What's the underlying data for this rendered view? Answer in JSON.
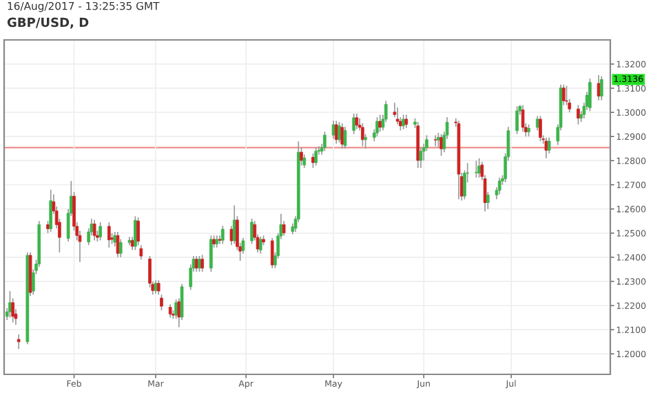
{
  "chart_data": {
    "type": "candlestick",
    "title": "GBP/USD, D",
    "annotations": [
      "16/Aug/2017 - 13:25:35 GMT",
      {
        "text": "1.3136",
        "x": "2017-08-01",
        "y": 1.3136
      }
    ],
    "x": [
      "2017-01-09",
      "2017-01-10",
      "2017-01-11",
      "2017-01-12",
      "2017-01-13",
      "2017-01-16",
      "2017-01-17",
      "2017-01-18",
      "2017-01-19",
      "2017-01-20",
      "2017-01-23",
      "2017-01-24",
      "2017-01-25",
      "2017-01-26",
      "2017-01-27",
      "2017-01-30",
      "2017-01-31",
      "2017-02-01",
      "2017-02-02",
      "2017-02-03",
      "2017-02-06",
      "2017-02-07",
      "2017-02-08",
      "2017-02-09",
      "2017-02-10",
      "2017-02-13",
      "2017-02-14",
      "2017-02-15",
      "2017-02-16",
      "2017-02-17",
      "2017-02-20",
      "2017-02-21",
      "2017-02-22",
      "2017-02-23",
      "2017-02-24",
      "2017-02-27",
      "2017-02-28",
      "2017-03-01",
      "2017-03-02",
      "2017-03-03",
      "2017-03-06",
      "2017-03-07",
      "2017-03-08",
      "2017-03-09",
      "2017-03-10",
      "2017-03-13",
      "2017-03-14",
      "2017-03-15",
      "2017-03-16",
      "2017-03-17",
      "2017-03-20",
      "2017-03-21",
      "2017-03-22",
      "2017-03-23",
      "2017-03-24",
      "2017-03-27",
      "2017-03-28",
      "2017-03-29",
      "2017-03-30",
      "2017-03-31",
      "2017-04-03",
      "2017-04-04",
      "2017-04-05",
      "2017-04-06",
      "2017-04-07",
      "2017-04-10",
      "2017-04-11",
      "2017-04-12",
      "2017-04-13",
      "2017-04-14",
      "2017-04-17",
      "2017-04-18",
      "2017-04-19",
      "2017-04-20",
      "2017-04-21",
      "2017-04-24",
      "2017-04-25",
      "2017-04-26",
      "2017-04-27",
      "2017-04-28",
      "2017-05-01",
      "2017-05-02",
      "2017-05-03",
      "2017-05-04",
      "2017-05-05",
      "2017-05-08",
      "2017-05-09",
      "2017-05-10",
      "2017-05-11",
      "2017-05-12",
      "2017-05-15",
      "2017-05-16",
      "2017-05-17",
      "2017-05-18",
      "2017-05-19",
      "2017-05-22",
      "2017-05-23",
      "2017-05-24",
      "2017-05-25",
      "2017-05-26",
      "2017-05-29",
      "2017-05-30",
      "2017-05-31",
      "2017-06-01",
      "2017-06-02",
      "2017-06-05",
      "2017-06-06",
      "2017-06-07",
      "2017-06-08",
      "2017-06-09",
      "2017-06-12",
      "2017-06-13",
      "2017-06-14",
      "2017-06-15",
      "2017-06-16",
      "2017-06-19",
      "2017-06-20",
      "2017-06-21",
      "2017-06-22",
      "2017-06-23",
      "2017-06-26",
      "2017-06-27",
      "2017-06-28",
      "2017-06-29",
      "2017-06-30",
      "2017-07-03",
      "2017-07-04",
      "2017-07-05",
      "2017-07-06",
      "2017-07-07",
      "2017-07-10",
      "2017-07-11",
      "2017-07-12",
      "2017-07-13",
      "2017-07-14",
      "2017-07-17",
      "2017-07-18",
      "2017-07-19",
      "2017-07-20",
      "2017-07-21",
      "2017-07-24",
      "2017-07-25",
      "2017-07-26",
      "2017-07-27",
      "2017-07-28",
      "2017-07-31",
      "2017-08-01"
    ],
    "ohlc": [
      [
        1.2155,
        1.219,
        1.214,
        1.2174
      ],
      [
        1.2174,
        1.226,
        1.215,
        1.2212
      ],
      [
        1.2212,
        1.223,
        1.213,
        1.2155
      ],
      [
        1.2165,
        1.2185,
        1.212,
        1.2146
      ],
      [
        1.206,
        1.208,
        1.202,
        1.205
      ],
      [
        1.205,
        1.242,
        1.204,
        1.2408
      ],
      [
        1.2408,
        1.242,
        1.224,
        1.2254
      ],
      [
        1.226,
        1.235,
        1.2245,
        1.2336
      ],
      [
        1.2345,
        1.239,
        1.233,
        1.2372
      ],
      [
        1.2372,
        1.255,
        1.236,
        1.2535
      ],
      [
        1.2535,
        1.255,
        1.25,
        1.2518
      ],
      [
        1.2518,
        1.268,
        1.2505,
        1.2634
      ],
      [
        1.263,
        1.266,
        1.258,
        1.2592
      ],
      [
        1.2592,
        1.261,
        1.252,
        1.2535
      ],
      [
        1.2545,
        1.256,
        1.242,
        1.2482
      ],
      [
        1.2478,
        1.26,
        1.2465,
        1.2582
      ],
      [
        1.2582,
        1.2716,
        1.257,
        1.2653
      ],
      [
        1.2653,
        1.267,
        1.251,
        1.2528
      ],
      [
        1.2528,
        1.2545,
        1.247,
        1.249
      ],
      [
        1.249,
        1.251,
        1.238,
        1.2465
      ],
      [
        1.2463,
        1.252,
        1.245,
        1.2505
      ],
      [
        1.2505,
        1.256,
        1.249,
        1.2538
      ],
      [
        1.2538,
        1.2555,
        1.247,
        1.249
      ],
      [
        1.249,
        1.251,
        1.2465,
        1.2482
      ],
      [
        1.2484,
        1.2545,
        1.247,
        1.2528
      ],
      [
        1.2528,
        1.2545,
        1.244,
        1.2472
      ],
      [
        1.248,
        1.25,
        1.2455,
        1.2474
      ],
      [
        1.2462,
        1.2505,
        1.2445,
        1.249
      ],
      [
        1.249,
        1.2505,
        1.24,
        1.2416
      ],
      [
        1.2416,
        1.2475,
        1.24,
        1.2461
      ],
      [
        1.2461,
        1.2485,
        1.245,
        1.247
      ],
      [
        1.247,
        1.2485,
        1.243,
        1.2445
      ],
      [
        1.2445,
        1.257,
        1.243,
        1.2553
      ],
      [
        1.255,
        1.2565,
        1.245,
        1.2466
      ],
      [
        1.2436,
        1.245,
        1.239,
        1.2405
      ],
      [
        1.2393,
        1.2405,
        1.2275,
        1.2292
      ],
      [
        1.2288,
        1.23,
        1.2245,
        1.2262
      ],
      [
        1.2262,
        1.2305,
        1.225,
        1.2292
      ],
      [
        1.2292,
        1.2305,
        1.2245,
        1.226
      ],
      [
        1.2231,
        1.2245,
        1.218,
        1.2197
      ],
      [
        1.2193,
        1.2205,
        1.215,
        1.2165
      ],
      [
        1.2165,
        1.218,
        1.2145,
        1.216
      ],
      [
        1.216,
        1.2225,
        1.2145,
        1.2212
      ],
      [
        1.2216,
        1.223,
        1.211,
        1.2152
      ],
      [
        1.2152,
        1.229,
        1.214,
        1.2278
      ],
      [
        1.2278,
        1.237,
        1.2265,
        1.2355
      ],
      [
        1.2355,
        1.2405,
        1.234,
        1.2392
      ],
      [
        1.2392,
        1.2405,
        1.234,
        1.2355
      ],
      [
        1.2355,
        1.2405,
        1.234,
        1.2392
      ],
      [
        1.2392,
        1.241,
        1.234,
        1.2355
      ],
      [
        1.2355,
        1.249,
        1.234,
        1.2474
      ],
      [
        1.2474,
        1.249,
        1.244,
        1.2455
      ],
      [
        1.2455,
        1.249,
        1.244,
        1.2474
      ],
      [
        1.2474,
        1.249,
        1.2455,
        1.247
      ],
      [
        1.247,
        1.253,
        1.2455,
        1.2516
      ],
      [
        1.2516,
        1.253,
        1.245,
        1.2468
      ],
      [
        1.2468,
        1.2615,
        1.2455,
        1.2554
      ],
      [
        1.2554,
        1.257,
        1.243,
        1.2444
      ],
      [
        1.2444,
        1.246,
        1.2385,
        1.2425
      ],
      [
        1.2428,
        1.248,
        1.2415,
        1.2468
      ],
      [
        1.2468,
        1.256,
        1.2455,
        1.2545
      ],
      [
        1.2535,
        1.255,
        1.247,
        1.2482
      ],
      [
        1.2482,
        1.2495,
        1.242,
        1.2434
      ],
      [
        1.243,
        1.2485,
        1.2415,
        1.2474
      ],
      [
        1.2474,
        1.249,
        1.245,
        1.2463
      ],
      [
        1.2468,
        1.248,
        1.2355,
        1.2368
      ],
      [
        1.2368,
        1.242,
        1.2355,
        1.2406
      ],
      [
        1.2406,
        1.25,
        1.2395,
        1.2488
      ],
      [
        1.2488,
        1.258,
        1.2475,
        1.2535
      ],
      [
        1.2535,
        1.255,
        1.249,
        1.2501
      ],
      [
        1.2507,
        1.254,
        1.2495,
        1.2526
      ],
      [
        1.252,
        1.257,
        1.2505,
        1.2558
      ],
      [
        1.2558,
        1.288,
        1.2545,
        1.2835
      ],
      [
        1.2835,
        1.2855,
        1.278,
        1.2801
      ],
      [
        1.2782,
        1.2825,
        1.277,
        1.2811
      ],
      [
        1.2814,
        1.283,
        1.277,
        1.2792
      ],
      [
        1.2792,
        1.2855,
        1.278,
        1.2839
      ],
      [
        1.2839,
        1.286,
        1.2825,
        1.2843
      ],
      [
        1.2839,
        1.287,
        1.2825,
        1.2854
      ],
      [
        1.2854,
        1.292,
        1.284,
        1.2906
      ],
      [
        1.2906,
        1.2965,
        1.289,
        1.2949
      ],
      [
        1.2949,
        1.2965,
        1.287,
        1.2887
      ],
      [
        1.2887,
        1.296,
        1.2875,
        1.2944
      ],
      [
        1.2938,
        1.2955,
        1.285,
        1.2868
      ],
      [
        1.2862,
        1.294,
        1.285,
        1.2925
      ],
      [
        1.2925,
        1.2995,
        1.291,
        1.2978
      ],
      [
        1.2978,
        1.2995,
        1.293,
        1.2947
      ],
      [
        1.2947,
        1.2975,
        1.2925,
        1.2938
      ],
      [
        1.2938,
        1.2955,
        1.286,
        1.2887
      ],
      [
        1.2887,
        1.291,
        1.285,
        1.2896
      ],
      [
        1.2896,
        1.293,
        1.288,
        1.2915
      ],
      [
        1.2915,
        1.298,
        1.29,
        1.2963
      ],
      [
        1.2963,
        1.299,
        1.292,
        1.2938
      ],
      [
        1.2938,
        1.299,
        1.2925,
        1.2972
      ],
      [
        1.2972,
        1.3048,
        1.296,
        1.3033
      ],
      [
        1.3001,
        1.304,
        1.298,
        1.2991
      ],
      [
        1.2972,
        1.302,
        1.295,
        1.2963
      ],
      [
        1.2963,
        1.298,
        1.2925,
        1.2944
      ],
      [
        1.2944,
        1.299,
        1.293,
        1.2972
      ],
      [
        1.2972,
        1.299,
        1.2935,
        1.295
      ],
      [
        1.295,
        1.2975,
        1.2935,
        1.296
      ],
      [
        1.2944,
        1.296,
        1.277,
        1.2801
      ],
      [
        1.2801,
        1.2855,
        1.277,
        1.2839
      ],
      [
        1.2839,
        1.287,
        1.28,
        1.2854
      ],
      [
        1.2854,
        1.2905,
        1.284,
        1.2887
      ],
      [
        1.2887,
        1.2905,
        1.286,
        1.2885
      ],
      [
        1.2885,
        1.2915,
        1.2855,
        1.2896
      ],
      [
        1.2896,
        1.291,
        1.282,
        1.2849
      ],
      [
        1.2849,
        1.292,
        1.2835,
        1.2906
      ],
      [
        1.2906,
        1.298,
        1.289,
        1.2959
      ],
      [
        1.296,
        1.2975,
        1.294,
        1.2957
      ],
      [
        1.2953,
        1.2965,
        1.264,
        1.2744
      ],
      [
        1.2734,
        1.275,
        1.2635,
        1.2653
      ],
      [
        1.2653,
        1.276,
        1.264,
        1.2748
      ],
      [
        1.2748,
        1.279,
        1.271,
        1.275
      ],
      [
        1.275,
        1.28,
        1.273,
        1.2752
      ],
      [
        1.2748,
        1.281,
        1.273,
        1.2778
      ],
      [
        1.2782,
        1.2795,
        1.272,
        1.2734
      ],
      [
        1.2725,
        1.274,
        1.259,
        1.2626
      ],
      [
        1.2626,
        1.267,
        1.26,
        1.2658
      ],
      [
        1.2658,
        1.269,
        1.264,
        1.2677
      ],
      [
        1.2677,
        1.273,
        1.266,
        1.2716
      ],
      [
        1.2716,
        1.274,
        1.27,
        1.2725
      ],
      [
        1.2725,
        1.283,
        1.271,
        1.2816
      ],
      [
        1.2816,
        1.294,
        1.28,
        1.2924
      ],
      [
        1.2924,
        1.3025,
        1.291,
        1.3006
      ],
      [
        1.3006,
        1.303,
        1.299,
        1.3025
      ],
      [
        1.301,
        1.303,
        1.292,
        1.2938
      ],
      [
        1.2938,
        1.2955,
        1.29,
        1.2919
      ],
      [
        1.2919,
        1.295,
        1.29,
        1.2934
      ],
      [
        1.2938,
        1.2985,
        1.2925,
        1.2972
      ],
      [
        1.2972,
        1.2985,
        1.288,
        1.2896
      ],
      [
        1.289,
        1.2905,
        1.287,
        1.2887
      ],
      [
        1.2881,
        1.2895,
        1.281,
        1.2843
      ],
      [
        1.2843,
        1.2895,
        1.283,
        1.2881
      ],
      [
        1.2881,
        1.295,
        1.2865,
        1.2938
      ],
      [
        1.2938,
        1.3115,
        1.2925,
        1.3101
      ],
      [
        1.3101,
        1.3115,
        1.303,
        1.3048
      ],
      [
        1.3048,
        1.311,
        1.303,
        1.3046
      ],
      [
        1.3039,
        1.3055,
        1.3,
        1.3014
      ],
      [
        1.3014,
        1.303,
        1.295,
        1.2976
      ],
      [
        1.2976,
        1.3005,
        1.296,
        1.2991
      ],
      [
        1.2991,
        1.304,
        1.2975,
        1.3025
      ],
      [
        1.3025,
        1.3085,
        1.301,
        1.3071
      ],
      [
        1.3019,
        1.314,
        1.3005,
        1.3124
      ],
      [
        1.312,
        1.3155,
        1.305,
        1.3067
      ],
      [
        1.3067,
        1.315,
        1.305,
        1.3136
      ]
    ],
    "xlim": [
      "2017-01-08",
      "2017-08-04"
    ],
    "xticks": [
      {
        "value": "2017-02-01",
        "label": "Feb"
      },
      {
        "value": "2017-03-01",
        "label": "Mar"
      },
      {
        "value": "2017-04-01",
        "label": "Apr"
      },
      {
        "value": "2017-05-01",
        "label": "May"
      },
      {
        "value": "2017-06-01",
        "label": "Jun"
      },
      {
        "value": "2017-07-01",
        "label": "Jul"
      }
    ],
    "ylim": [
      1.1915,
      1.33
    ],
    "yticks": [
      {
        "value": 1.2,
        "label": "1.2000"
      },
      {
        "value": 1.21,
        "label": "1.2100"
      },
      {
        "value": 1.22,
        "label": "1.2200"
      },
      {
        "value": 1.23,
        "label": "1.2300"
      },
      {
        "value": 1.24,
        "label": "1.2400"
      },
      {
        "value": 1.25,
        "label": "1.2500"
      },
      {
        "value": 1.26,
        "label": "1.2600"
      },
      {
        "value": 1.27,
        "label": "1.2700"
      },
      {
        "value": 1.28,
        "label": "1.2800"
      },
      {
        "value": 1.29,
        "label": "1.2900"
      },
      {
        "value": 1.3,
        "label": "1.3000"
      },
      {
        "value": 1.31,
        "label": "1.3100"
      },
      {
        "value": 1.32,
        "label": "1.3200"
      }
    ],
    "ref_lines": [
      {
        "axis": "y",
        "value": 1.2854,
        "color": "#f08080"
      }
    ],
    "grid": true,
    "legend": false
  }
}
